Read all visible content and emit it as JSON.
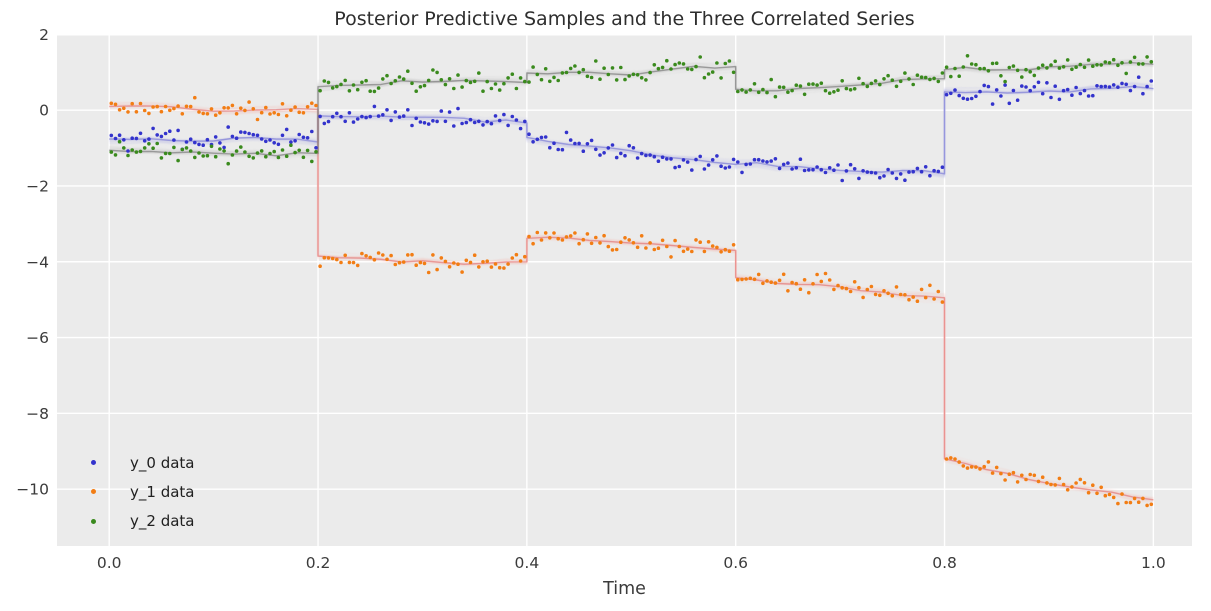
{
  "chart_data": {
    "type": "scatter",
    "title": "Posterior Predictive Samples and the Three Correlated Series",
    "xlabel": "Time",
    "ylabel": "",
    "xlim": [
      -0.05,
      1.037
    ],
    "ylim": [
      -11.5,
      1.97
    ],
    "grid": true,
    "x_ticks": {
      "values": [
        0.0,
        0.2,
        0.4,
        0.6,
        0.8,
        1.0
      ],
      "labels": [
        "0.0",
        "0.2",
        "0.4",
        "0.6",
        "0.8",
        "1.0"
      ]
    },
    "y_ticks": {
      "values": [
        2,
        0,
        -2,
        -4,
        -6,
        -8,
        -10
      ],
      "labels": [
        "2",
        "0",
        "−2",
        "−4",
        "−6",
        "−8",
        "−10"
      ]
    },
    "colors": {
      "figure_background": "#ffffff",
      "axes_background": "#ebebeb",
      "grid": "#ffffff",
      "title_text": "#2e2e2e",
      "tick_text": "#3b3b3b",
      "axis_label_text": "#3b3b3b",
      "legend_text": "#202020"
    },
    "points_per_segment": 50,
    "noise_sd": 0.12,
    "posterior_samples": {
      "count": 16,
      "offset_sd": 0.055,
      "jitter_sd": 0.016
    },
    "series": [
      {
        "name": "y_0 data",
        "point_color": "#3333cc",
        "band_core_color": "#7373d4",
        "band_glow_color": "#a3a3e6",
        "segments": [
          {
            "t_start": 0.0,
            "t_end": 0.2,
            "v_start": -0.76,
            "v_end": -0.84
          },
          {
            "t_start": 0.2,
            "t_end": 0.4,
            "v_start": -0.15,
            "v_end": -0.34
          },
          {
            "t_start": 0.4,
            "t_end": 0.6,
            "v_start": -0.72,
            "v_end": -1.43
          },
          {
            "t_start": 0.6,
            "t_end": 0.8,
            "v_start": -1.43,
            "v_end": -1.68
          },
          {
            "t_start": 0.8,
            "t_end": 1.0,
            "v_start": 0.48,
            "v_end": 0.57
          }
        ]
      },
      {
        "name": "y_1 data",
        "point_color": "#f27d14",
        "band_core_color": "#e06a6a",
        "band_glow_color": "#f2b0ab",
        "segments": [
          {
            "t_start": 0.0,
            "t_end": 0.2,
            "v_start": 0.1,
            "v_end": 0.02
          },
          {
            "t_start": 0.2,
            "t_end": 0.4,
            "v_start": -3.85,
            "v_end": -4.0
          },
          {
            "t_start": 0.4,
            "t_end": 0.6,
            "v_start": -3.38,
            "v_end": -3.7
          },
          {
            "t_start": 0.6,
            "t_end": 0.8,
            "v_start": -4.42,
            "v_end": -4.95
          },
          {
            "t_start": 0.8,
            "t_end": 1.0,
            "v_start": -9.2,
            "v_end": -10.28
          }
        ]
      },
      {
        "name": "y_2 data",
        "point_color": "#3a8a1d",
        "band_core_color": "#6f6f6f",
        "band_glow_color": "#b3b3b3",
        "segments": [
          {
            "t_start": 0.0,
            "t_end": 0.2,
            "v_start": -1.06,
            "v_end": -1.14
          },
          {
            "t_start": 0.2,
            "t_end": 0.4,
            "v_start": 0.62,
            "v_end": 0.73
          },
          {
            "t_start": 0.4,
            "t_end": 0.6,
            "v_start": 0.98,
            "v_end": 1.15
          },
          {
            "t_start": 0.6,
            "t_end": 0.8,
            "v_start": 0.55,
            "v_end": 0.83
          },
          {
            "t_start": 0.8,
            "t_end": 1.0,
            "v_start": 1.07,
            "v_end": 1.21
          }
        ]
      }
    ],
    "legend": {
      "position": "lower-left",
      "entries": [
        {
          "label": "y_0 data",
          "series_index": 0
        },
        {
          "label": "y_1 data",
          "series_index": 1
        },
        {
          "label": "y_2 data",
          "series_index": 2
        }
      ]
    }
  }
}
